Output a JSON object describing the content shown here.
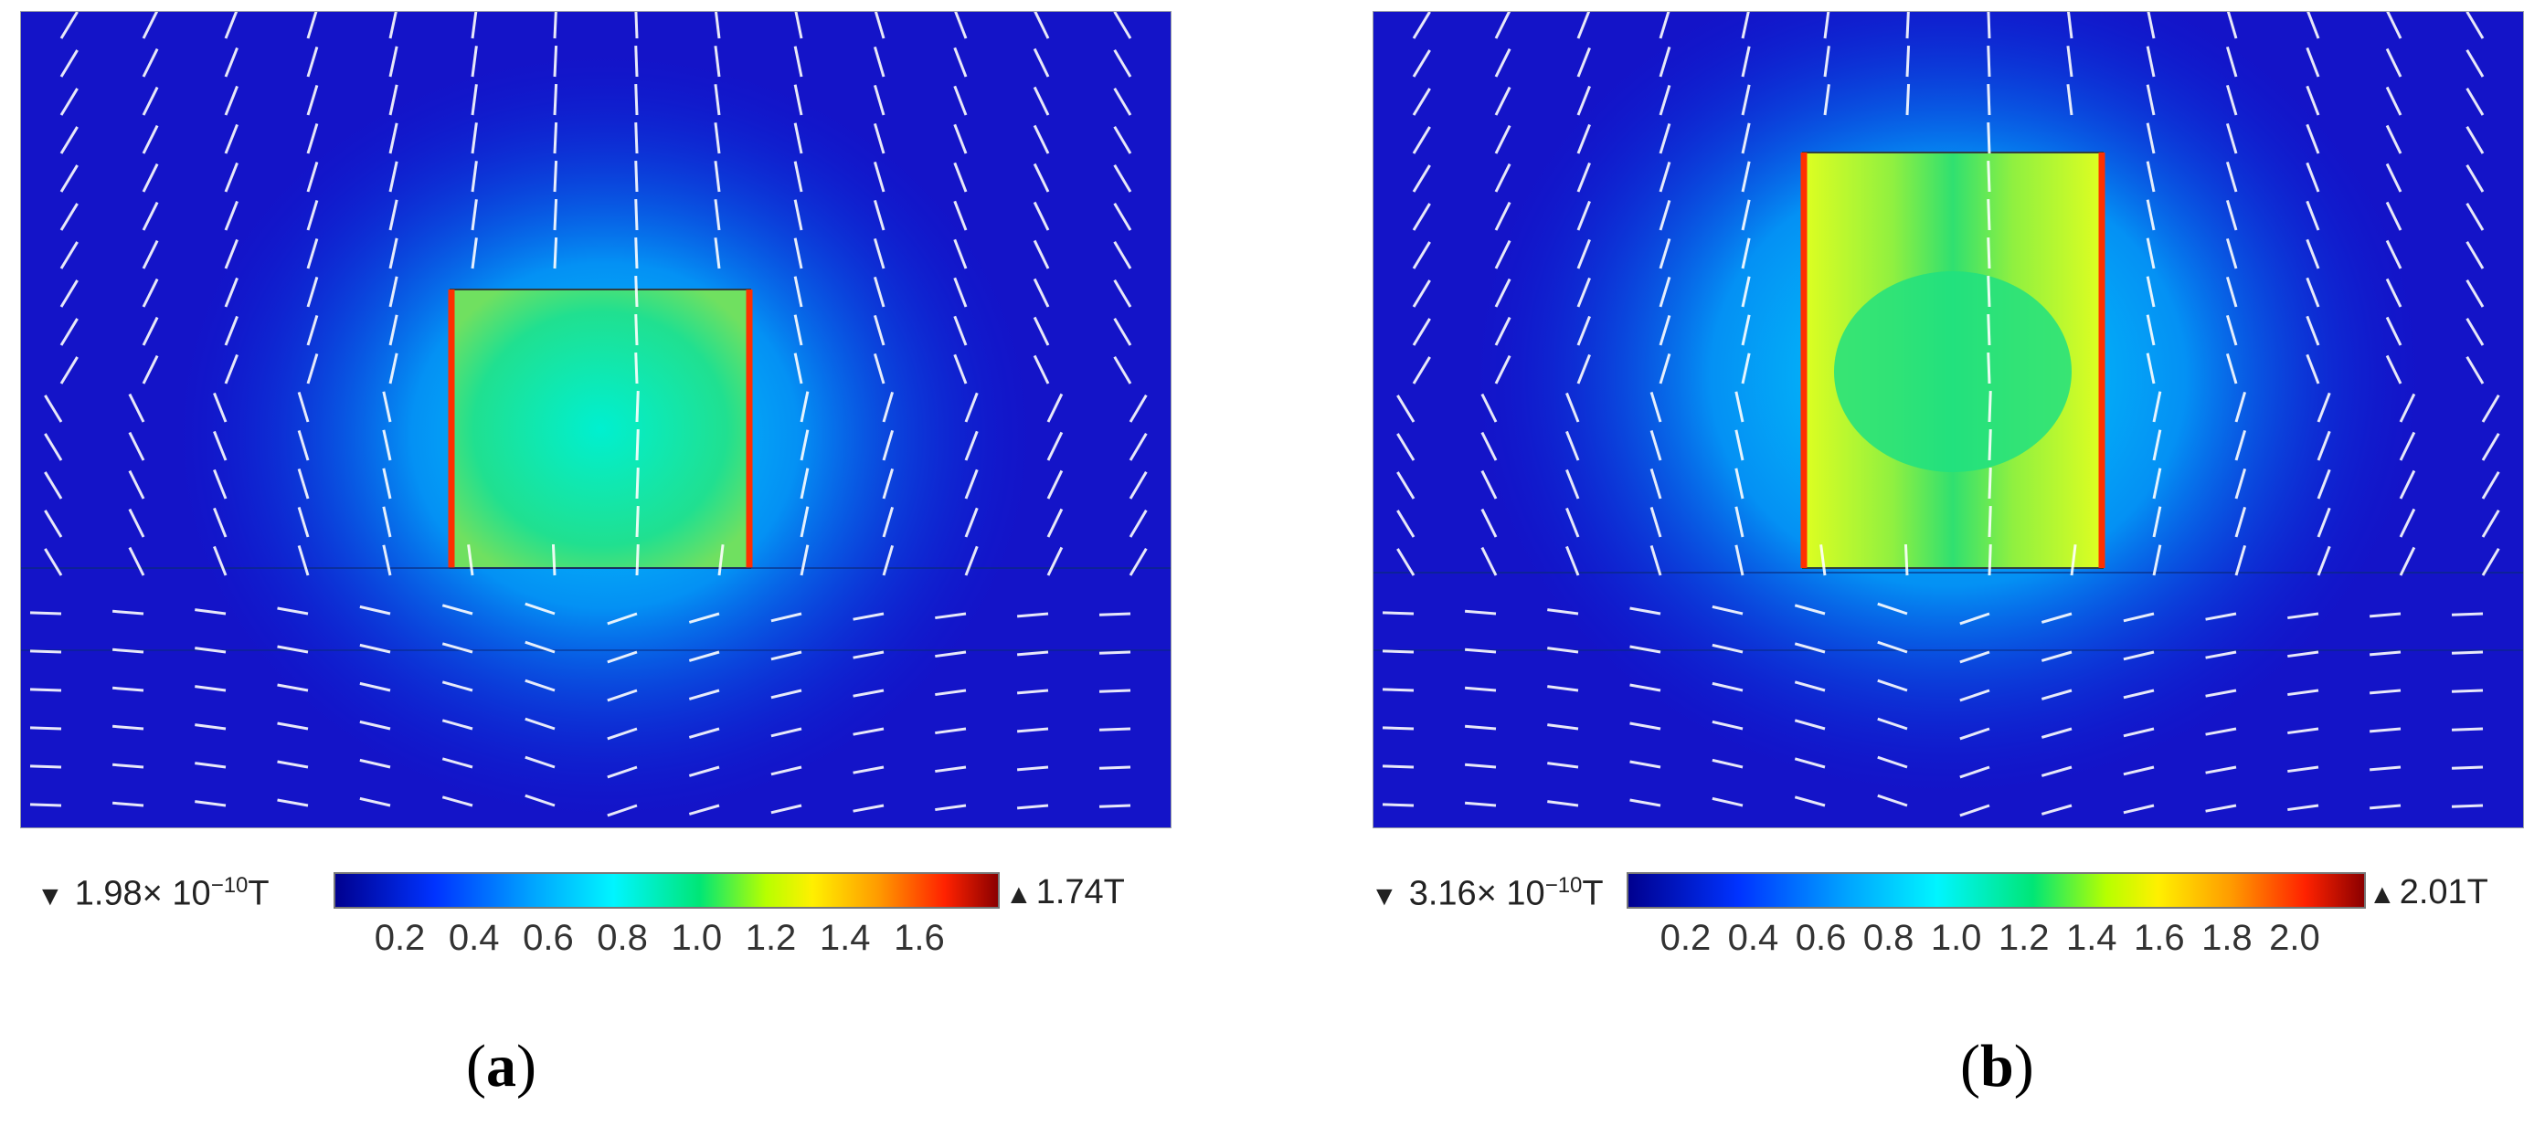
{
  "panels": [
    {
      "id": "a",
      "caption": "(a)",
      "caption_letter": "a",
      "colorbar": {
        "min_label": "1.98× 10",
        "min_exp": "−10",
        "min_unit": "T",
        "max_label": "1.74T",
        "ticks": [
          "0.2",
          "0.4",
          "0.6",
          "0.8",
          "1.0",
          "1.2",
          "1.4",
          "1.6"
        ]
      }
    },
    {
      "id": "b",
      "caption": "(b)",
      "caption_letter": "b",
      "colorbar": {
        "min_label": "3.16× 10",
        "min_exp": "−10",
        "min_unit": "T",
        "max_label": "2.01T",
        "ticks": [
          "0.2",
          "0.4",
          "0.6",
          "0.8",
          "1.0",
          "1.2",
          "1.4",
          "1.6",
          "1.8",
          "2.0"
        ]
      }
    }
  ],
  "colors": {
    "background_field": "#1010c8",
    "arrow": "#ffffff",
    "magnet_edge": "#ff3000"
  }
}
